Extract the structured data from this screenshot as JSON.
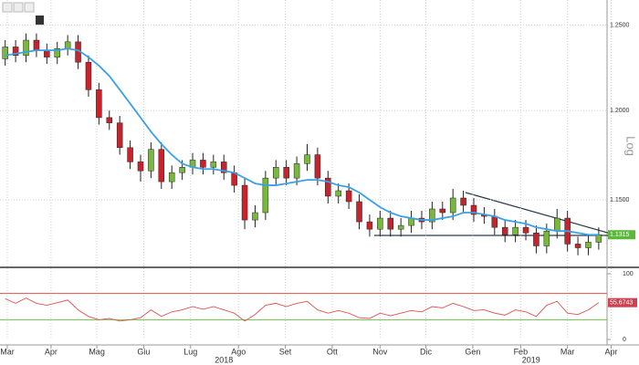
{
  "chart_data": {
    "type": "candlestick",
    "log_scale": true,
    "grid": true,
    "axis_label": "Log",
    "up_color": "#78b83c",
    "down_color": "#c8232c",
    "ma_color": "#3aa0e8",
    "xlim": [
      -0.5,
      57.8
    ],
    "ylim": [
      1.115,
      1.265
    ],
    "yticks": [
      {
        "value": 1.25,
        "label": "1.2500"
      },
      {
        "value": 1.2,
        "label": "1.2000"
      },
      {
        "value": 1.15,
        "label": "1.1500"
      }
    ],
    "xticks": [
      {
        "value": 0.2,
        "label": "Mar"
      },
      {
        "value": 4.4,
        "label": "Apr"
      },
      {
        "value": 8.8,
        "label": "Mag"
      },
      {
        "value": 13.3,
        "label": "Giu"
      },
      {
        "value": 17.8,
        "label": "Lug"
      },
      {
        "value": 22.4,
        "label": "Ago"
      },
      {
        "value": 26.9,
        "label": "Set"
      },
      {
        "value": 31.4,
        "label": "Ott"
      },
      {
        "value": 36,
        "label": "Nov"
      },
      {
        "value": 40.4,
        "label": "Dic"
      },
      {
        "value": 44.9,
        "label": "Gen"
      },
      {
        "value": 49.5,
        "label": "Feb"
      },
      {
        "value": 54,
        "label": "Mar"
      },
      {
        "value": 58.2,
        "label": "Apr"
      }
    ],
    "year_labels": [
      {
        "value": 21,
        "label": "2018"
      },
      {
        "value": 50.5,
        "label": "2019"
      }
    ],
    "x": [
      0,
      1,
      2,
      3,
      4,
      5,
      6,
      7,
      8,
      9,
      10,
      11,
      12,
      13,
      14,
      15,
      16,
      17,
      18,
      19,
      20,
      21,
      22,
      23,
      24,
      25,
      26,
      27,
      28,
      29,
      30,
      31,
      32,
      33,
      34,
      35,
      36,
      37,
      38,
      39,
      40,
      41,
      42,
      43,
      44,
      45,
      46,
      47,
      48,
      49,
      50,
      51,
      52,
      53,
      54,
      55,
      56,
      57
    ],
    "open": [
      1.23,
      1.237,
      1.232,
      1.241,
      1.235,
      1.231,
      1.236,
      1.24,
      1.228,
      1.212,
      1.196,
      1.193,
      1.179,
      1.171,
      1.166,
      1.178,
      1.16,
      1.165,
      1.168,
      1.172,
      1.168,
      1.171,
      1.165,
      1.158,
      1.139,
      1.143,
      1.162,
      1.168,
      1.162,
      1.17,
      1.175,
      1.162,
      1.152,
      1.155,
      1.149,
      1.138,
      1.134,
      1.14,
      1.134,
      1.136,
      1.14,
      1.138,
      1.145,
      1.143,
      1.151,
      1.147,
      1.142,
      1.141,
      1.135,
      1.131,
      1.135,
      1.132,
      1.125,
      1.133,
      1.14,
      1.126,
      1.124,
      1.127
    ],
    "high": [
      1.241,
      1.241,
      1.245,
      1.245,
      1.239,
      1.24,
      1.244,
      1.244,
      1.232,
      1.216,
      1.2,
      1.197,
      1.183,
      1.175,
      1.182,
      1.182,
      1.169,
      1.172,
      1.176,
      1.176,
      1.175,
      1.175,
      1.169,
      1.162,
      1.147,
      1.166,
      1.172,
      1.172,
      1.174,
      1.181,
      1.179,
      1.166,
      1.159,
      1.159,
      1.153,
      1.142,
      1.144,
      1.144,
      1.14,
      1.144,
      1.144,
      1.149,
      1.149,
      1.156,
      1.155,
      1.151,
      1.146,
      1.145,
      1.139,
      1.139,
      1.139,
      1.136,
      1.137,
      1.145,
      1.144,
      1.13,
      1.131,
      1.135
    ],
    "low": [
      1.226,
      1.228,
      1.228,
      1.231,
      1.227,
      1.227,
      1.232,
      1.224,
      1.208,
      1.192,
      1.189,
      1.175,
      1.167,
      1.16,
      1.162,
      1.156,
      1.156,
      1.161,
      1.164,
      1.164,
      1.164,
      1.161,
      1.154,
      1.134,
      1.135,
      1.139,
      1.158,
      1.158,
      1.158,
      1.166,
      1.158,
      1.148,
      1.148,
      1.145,
      1.134,
      1.13,
      1.13,
      1.13,
      1.13,
      1.132,
      1.134,
      1.134,
      1.139,
      1.139,
      1.143,
      1.138,
      1.137,
      1.131,
      1.127,
      1.127,
      1.128,
      1.121,
      1.121,
      1.129,
      1.122,
      1.12,
      1.12,
      1.123
    ],
    "close": [
      1.237,
      1.232,
      1.241,
      1.235,
      1.231,
      1.236,
      1.24,
      1.228,
      1.212,
      1.196,
      1.193,
      1.179,
      1.171,
      1.166,
      1.178,
      1.16,
      1.165,
      1.168,
      1.172,
      1.168,
      1.171,
      1.165,
      1.158,
      1.139,
      1.143,
      1.162,
      1.168,
      1.162,
      1.17,
      1.175,
      1.162,
      1.152,
      1.155,
      1.149,
      1.138,
      1.134,
      1.14,
      1.134,
      1.136,
      1.14,
      1.138,
      1.145,
      1.143,
      1.151,
      1.147,
      1.142,
      1.141,
      1.135,
      1.131,
      1.135,
      1.132,
      1.125,
      1.133,
      1.14,
      1.126,
      1.124,
      1.127,
      1.131
    ],
    "moving_average": [
      1.232,
      1.233,
      1.234,
      1.235,
      1.235,
      1.235,
      1.236,
      1.235,
      1.231,
      1.226,
      1.22,
      1.212,
      1.204,
      1.196,
      1.188,
      1.181,
      1.175,
      1.17,
      1.168,
      1.167,
      1.167,
      1.166,
      1.165,
      1.162,
      1.159,
      1.158,
      1.158,
      1.159,
      1.16,
      1.161,
      1.161,
      1.16,
      1.158,
      1.157,
      1.154,
      1.15,
      1.146,
      1.143,
      1.141,
      1.14,
      1.139,
      1.139,
      1.14,
      1.141,
      1.143,
      1.143,
      1.142,
      1.141,
      1.139,
      1.138,
      1.137,
      1.135,
      1.134,
      1.133,
      1.133,
      1.132,
      1.131,
      1.131
    ],
    "last_price_label": "1.1315",
    "rsi": {
      "color": "#e05050",
      "values": [
        62,
        55,
        63,
        55,
        52,
        56,
        60,
        45,
        35,
        30,
        32,
        28,
        30,
        33,
        45,
        35,
        42,
        45,
        50,
        46,
        50,
        45,
        40,
        28,
        38,
        52,
        55,
        50,
        55,
        58,
        45,
        40,
        44,
        40,
        33,
        32,
        40,
        36,
        40,
        44,
        42,
        50,
        48,
        55,
        50,
        44,
        45,
        40,
        37,
        45,
        42,
        35,
        52,
        58,
        40,
        38,
        45,
        56
      ],
      "ylim": [
        0,
        100
      ],
      "yticks": [
        0,
        100
      ],
      "levels": [
        70,
        30
      ],
      "last_label": "55.6743"
    }
  }
}
